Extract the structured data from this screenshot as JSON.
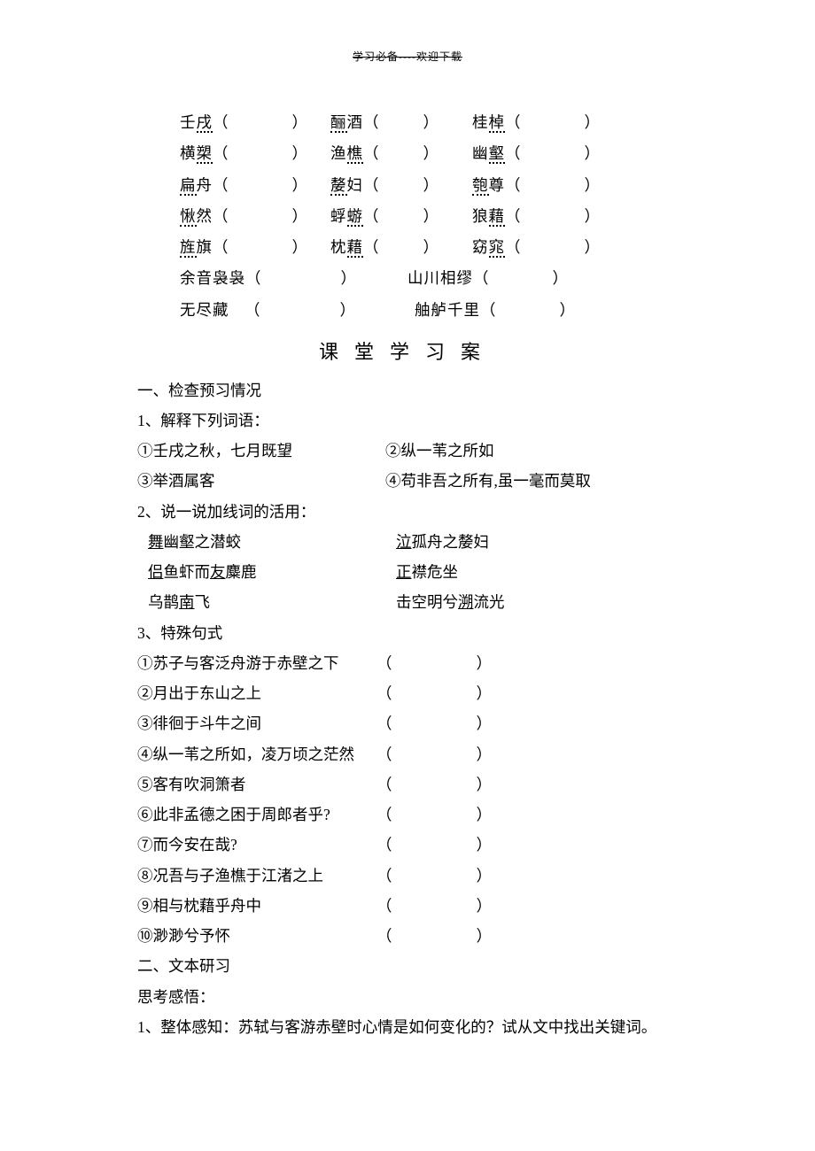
{
  "header": "学习必备----欢迎下载",
  "phonetics": {
    "rows": [
      [
        {
          "pre": "壬",
          "dot": "戌",
          "post": "",
          "gap": "gap-med"
        },
        {
          "pre": "",
          "dot": "酾",
          "post": "酒",
          "gap": "gap-small"
        },
        {
          "pre": "桂",
          "dot": "棹",
          "post": "",
          "gap": "gap-med"
        }
      ],
      [
        {
          "pre": "横",
          "dot": "槊",
          "post": "",
          "gap": "gap-med"
        },
        {
          "pre": "渔",
          "dot": "樵",
          "post": "",
          "gap": "gap-small"
        },
        {
          "pre": "幽",
          "dot": "壑",
          "post": "",
          "gap": "gap-med"
        }
      ],
      [
        {
          "pre": "",
          "dot": "扁",
          "post": "舟",
          "gap": "gap-med"
        },
        {
          "pre": "",
          "dot": "嫠",
          "post": "妇",
          "gap": "gap-small"
        },
        {
          "pre": "",
          "dot": "匏",
          "post": "尊",
          "gap": "gap-med"
        }
      ],
      [
        {
          "pre": "",
          "dot": "愀",
          "post": "然",
          "gap": "gap-med"
        },
        {
          "pre": "蜉",
          "dot": "蝣",
          "post": "",
          "gap": "gap-small"
        },
        {
          "pre": "狼",
          "dot": "藉",
          "post": "",
          "gap": "gap-med"
        }
      ],
      [
        {
          "pre": "",
          "dot": "旌",
          "post": "旗",
          "gap": "gap-med"
        },
        {
          "pre": "枕",
          "dot": "藉",
          "post": "",
          "gap": "gap-small"
        },
        {
          "pre": "窈",
          "dot": "窕",
          "post": "",
          "gap": "gap-med"
        }
      ]
    ],
    "rows2": [
      [
        {
          "text": "余音袅袅",
          "gap": "gap-large",
          "leftpad": 0
        },
        {
          "text": "山川相缪",
          "gap": "gap-med",
          "leftpad": 42
        }
      ],
      [
        {
          "text": "无尽藏",
          "gap": "gap-large",
          "leftpad": 0,
          "extra": "　"
        },
        {
          "text": "舳舻千里",
          "gap": "gap-med",
          "leftpad": 50
        }
      ]
    ]
  },
  "section_title": "课堂学习案",
  "s1_heading": "一、检查预习情况",
  "q1_label": "1、解释下列词语：",
  "q1_items": [
    {
      "l": "①壬戌之秋，七月既望",
      "r": "②纵一苇之所如"
    },
    {
      "l": "③举酒属客",
      "r": "④苟非吾之所有,虽一毫而莫取"
    }
  ],
  "q2_label": "2、说一说加线词的活用：",
  "q2_items": [
    {
      "l_pre": "",
      "l_u": "舞",
      "l_post": "幽壑之潜蛟",
      "r_pre": "",
      "r_u": "泣",
      "r_post": "孤舟之嫠妇"
    },
    {
      "l_pre": "",
      "l_u": "侣",
      "l_mid": "鱼虾而",
      "l_u2": "友",
      "l_post": "麋鹿",
      "r_pre": "",
      "r_u": "正",
      "r_post": "襟危坐"
    },
    {
      "l_pre": "乌鹊",
      "l_u": "南",
      "l_post": "飞",
      "r_pre": "击空明兮",
      "r_u": "溯",
      "r_post": "流光"
    }
  ],
  "q3_label": "3、特殊句式",
  "q3_items": [
    "①苏子与客泛舟游于赤壁之下",
    "②月出于东山之上",
    "③徘徊于斗牛之间",
    "④纵一苇之所如，凌万顷之茫然",
    "⑤客有吹洞箫者",
    "⑥此非孟德之困于周郎者乎?",
    "⑦而今安在哉?",
    "⑧况吾与子渔樵于江渚之上",
    "⑨相与枕藉乎舟中",
    "⑩渺渺兮予怀"
  ],
  "s2_heading": "二、文本研习",
  "s2_sub": "思考感悟：",
  "s2_q1": "1、整体感知：苏轼与客游赤壁时心情是如何变化的？试从文中找出关键词。"
}
